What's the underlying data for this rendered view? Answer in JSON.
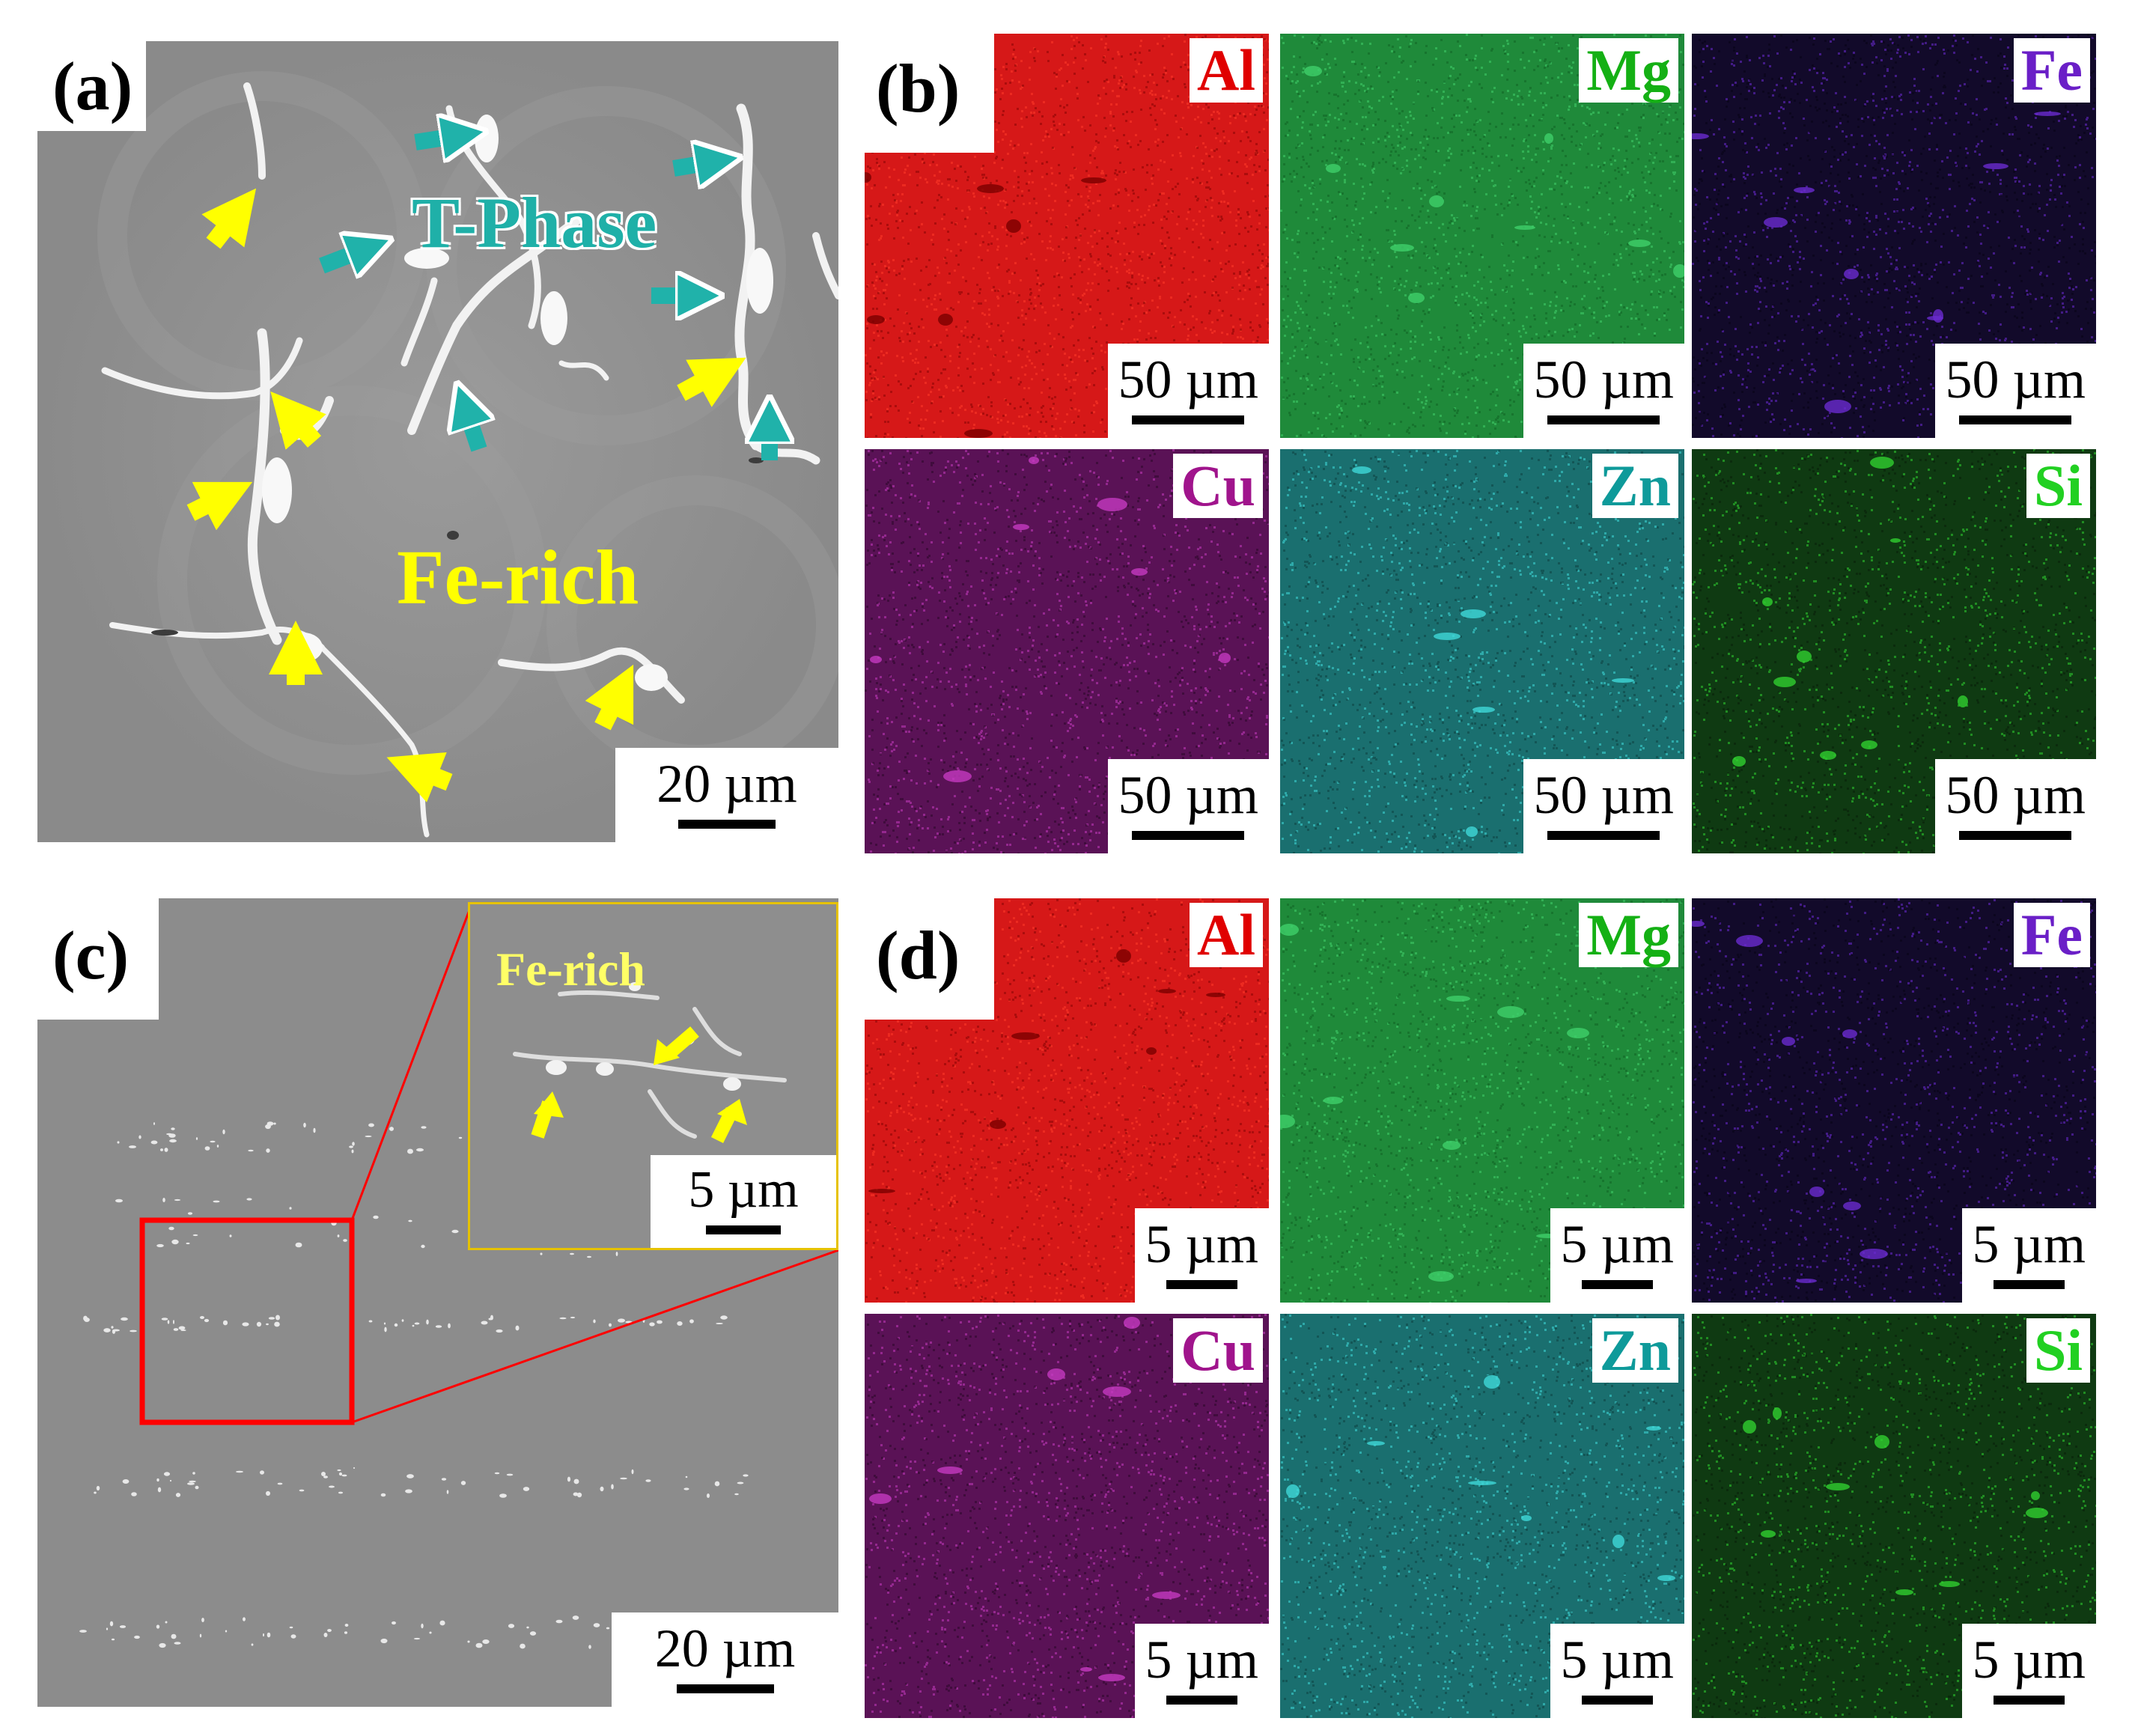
{
  "panels": {
    "a": {
      "label": "(a)",
      "annotations": {
        "t_phase": "T-Phase",
        "fe_rich": "Fe-rich"
      },
      "scale_bar": "20 µm"
    },
    "b": {
      "label": "(b)",
      "maps": [
        {
          "element": "Al",
          "label_color": "#e00000",
          "scale_bar": "50 µm"
        },
        {
          "element": "Mg",
          "label_color": "#14b014",
          "scale_bar": "50 µm"
        },
        {
          "element": "Fe",
          "label_color": "#6a1fc7",
          "scale_bar": "50 µm"
        },
        {
          "element": "Cu",
          "label_color": "#a0148c",
          "scale_bar": "50 µm"
        },
        {
          "element": "Zn",
          "label_color": "#0e9a9a",
          "scale_bar": "50 µm"
        },
        {
          "element": "Si",
          "label_color": "#22d022",
          "scale_bar": "50 µm"
        }
      ]
    },
    "c": {
      "label": "(c)",
      "inset_annotation": "Fe-rich",
      "inset_scale_bar": "5 µm",
      "scale_bar": "20 µm"
    },
    "d": {
      "label": "(d)",
      "maps": [
        {
          "element": "Al",
          "label_color": "#e00000",
          "scale_bar": "5 µm"
        },
        {
          "element": "Mg",
          "label_color": "#14b014",
          "scale_bar": "5 µm"
        },
        {
          "element": "Fe",
          "label_color": "#6a1fc7",
          "scale_bar": "5 µm"
        },
        {
          "element": "Cu",
          "label_color": "#a0148c",
          "scale_bar": "5 µm"
        },
        {
          "element": "Zn",
          "label_color": "#0e9a9a",
          "scale_bar": "5 µm"
        },
        {
          "element": "Si",
          "label_color": "#22d022",
          "scale_bar": "5 µm"
        }
      ]
    }
  },
  "colors": {
    "t_phase_arrow": "#20b2aa",
    "fe_rich_arrow": "#ffff00",
    "zoom_box": "#ff0000",
    "inset_border": "#e6c200"
  }
}
